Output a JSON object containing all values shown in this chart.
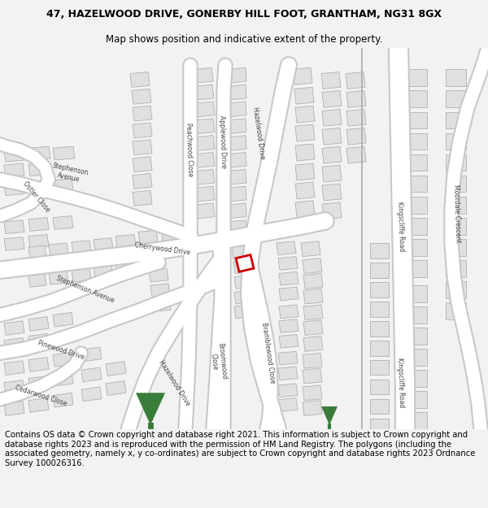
{
  "title_line1": "47, HAZELWOOD DRIVE, GONERBY HILL FOOT, GRANTHAM, NG31 8GX",
  "title_line2": "Map shows position and indicative extent of the property.",
  "footer": "Contains OS data © Crown copyright and database right 2021. This information is subject to Crown copyright and database rights 2023 and is reproduced with the permission of HM Land Registry. The polygons (including the associated geometry, namely x, y co-ordinates) are subject to Crown copyright and database rights 2023 Ordnance Survey 100026316.",
  "bg_color": "#f2f2f2",
  "map_bg": "#ffffff",
  "road_color": "#ffffff",
  "road_outline": "#c8c8c8",
  "building_color": "#e0e0e0",
  "building_outline": "#b0b0b0",
  "highlight_outline": "#cc0000",
  "green_color": "#3a7d3a",
  "title_fontsize": 9.0,
  "subtitle_fontsize": 8.5,
  "footer_fontsize": 7.2,
  "label_color": "#444444",
  "label_fontsize": 5.8
}
